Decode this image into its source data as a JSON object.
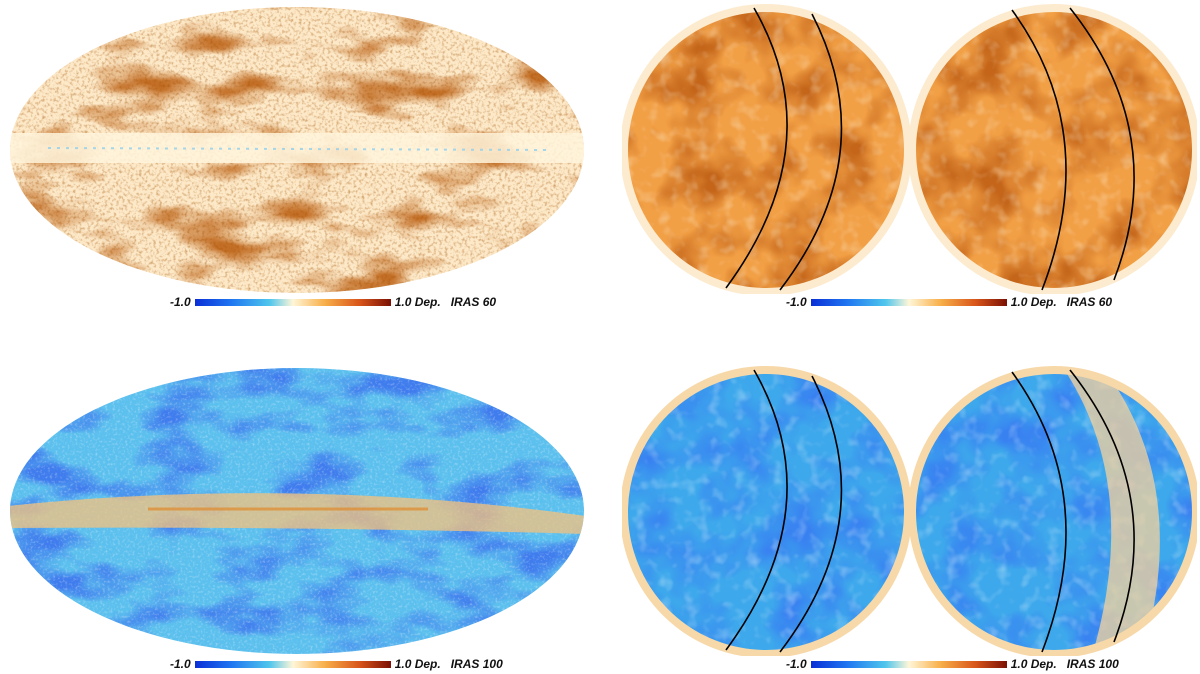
{
  "panels": [
    {
      "id": "allsky_60",
      "colormap": "warm",
      "colorbar": {
        "min_label": "-1.0",
        "max_label": "1.0 Dep.",
        "band": "IRAS 60"
      }
    },
    {
      "id": "poles_60",
      "colormap": "warm",
      "colorbar": {
        "min_label": "-1.0",
        "max_label": "1.0 Dep.",
        "band": "IRAS 60"
      }
    },
    {
      "id": "allsky_100",
      "colormap": "cool",
      "colorbar": {
        "min_label": "-1.0",
        "max_label": "1.0 Dep.",
        "band": "IRAS 100"
      }
    },
    {
      "id": "poles_100",
      "colormap": "cool",
      "colorbar": {
        "min_label": "-1.0",
        "max_label": "1.0 Dep.",
        "band": "IRAS 100"
      }
    }
  ],
  "colors": {
    "cold_min": "#0a2fd6",
    "cold_mid": "#4fc6ec",
    "neutral": "#fff6d8",
    "warm_mid": "#f0922e",
    "warm_max": "#7a1004"
  }
}
